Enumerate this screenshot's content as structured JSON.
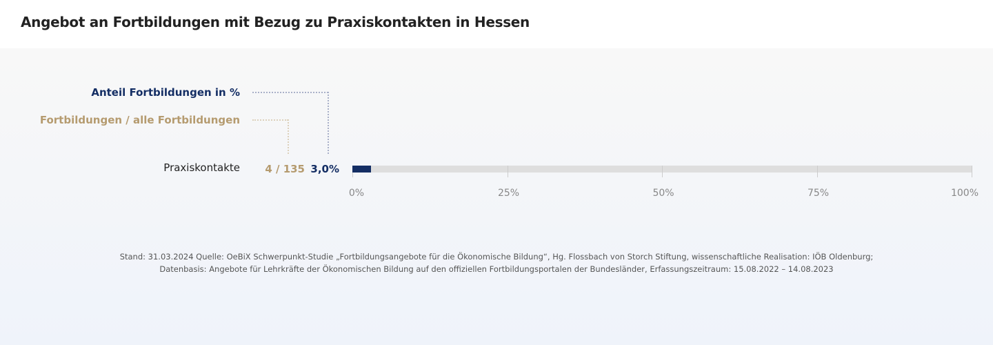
{
  "title": "Angebot an Fortbildungen mit Bezug zu Praxiskontakten in Hessen",
  "chart_data": {
    "type": "bar",
    "orientation": "horizontal",
    "legend": {
      "percent_label": "Anteil Fortbildungen  in %",
      "count_label": "Fortbildungen / alle Fortbildungen"
    },
    "categories": [
      "Praxiskontakte"
    ],
    "values": [
      3.0
    ],
    "value_labels": [
      "3,0%"
    ],
    "count_labels": [
      "4 / 135"
    ],
    "xlim": [
      0,
      100
    ],
    "ticks": [
      0,
      25,
      50,
      75,
      100
    ],
    "tick_labels": [
      "0%",
      "25%",
      "50%",
      "75%",
      "100%"
    ],
    "colors": {
      "bar": "#142e64",
      "track": "#dedede",
      "count": "#b59b6f"
    }
  },
  "source": {
    "line1": "Stand: 31.03.2024 Quelle: OeBiX Schwerpunkt-Studie „Fortbildungsangebote für die Ökonomische Bildung“, Hg. Flossbach von Storch Stiftung, wissenschaftliche Realisation: IÖB Oldenburg;",
    "line2": "Datenbasis: Angebote für Lehrkräfte der Ökonomischen Bildung auf den offiziellen Fortbildungsportalen der Bundesländer, Erfassungszeitraum: 15.08.2022 – 14.08.2023"
  }
}
